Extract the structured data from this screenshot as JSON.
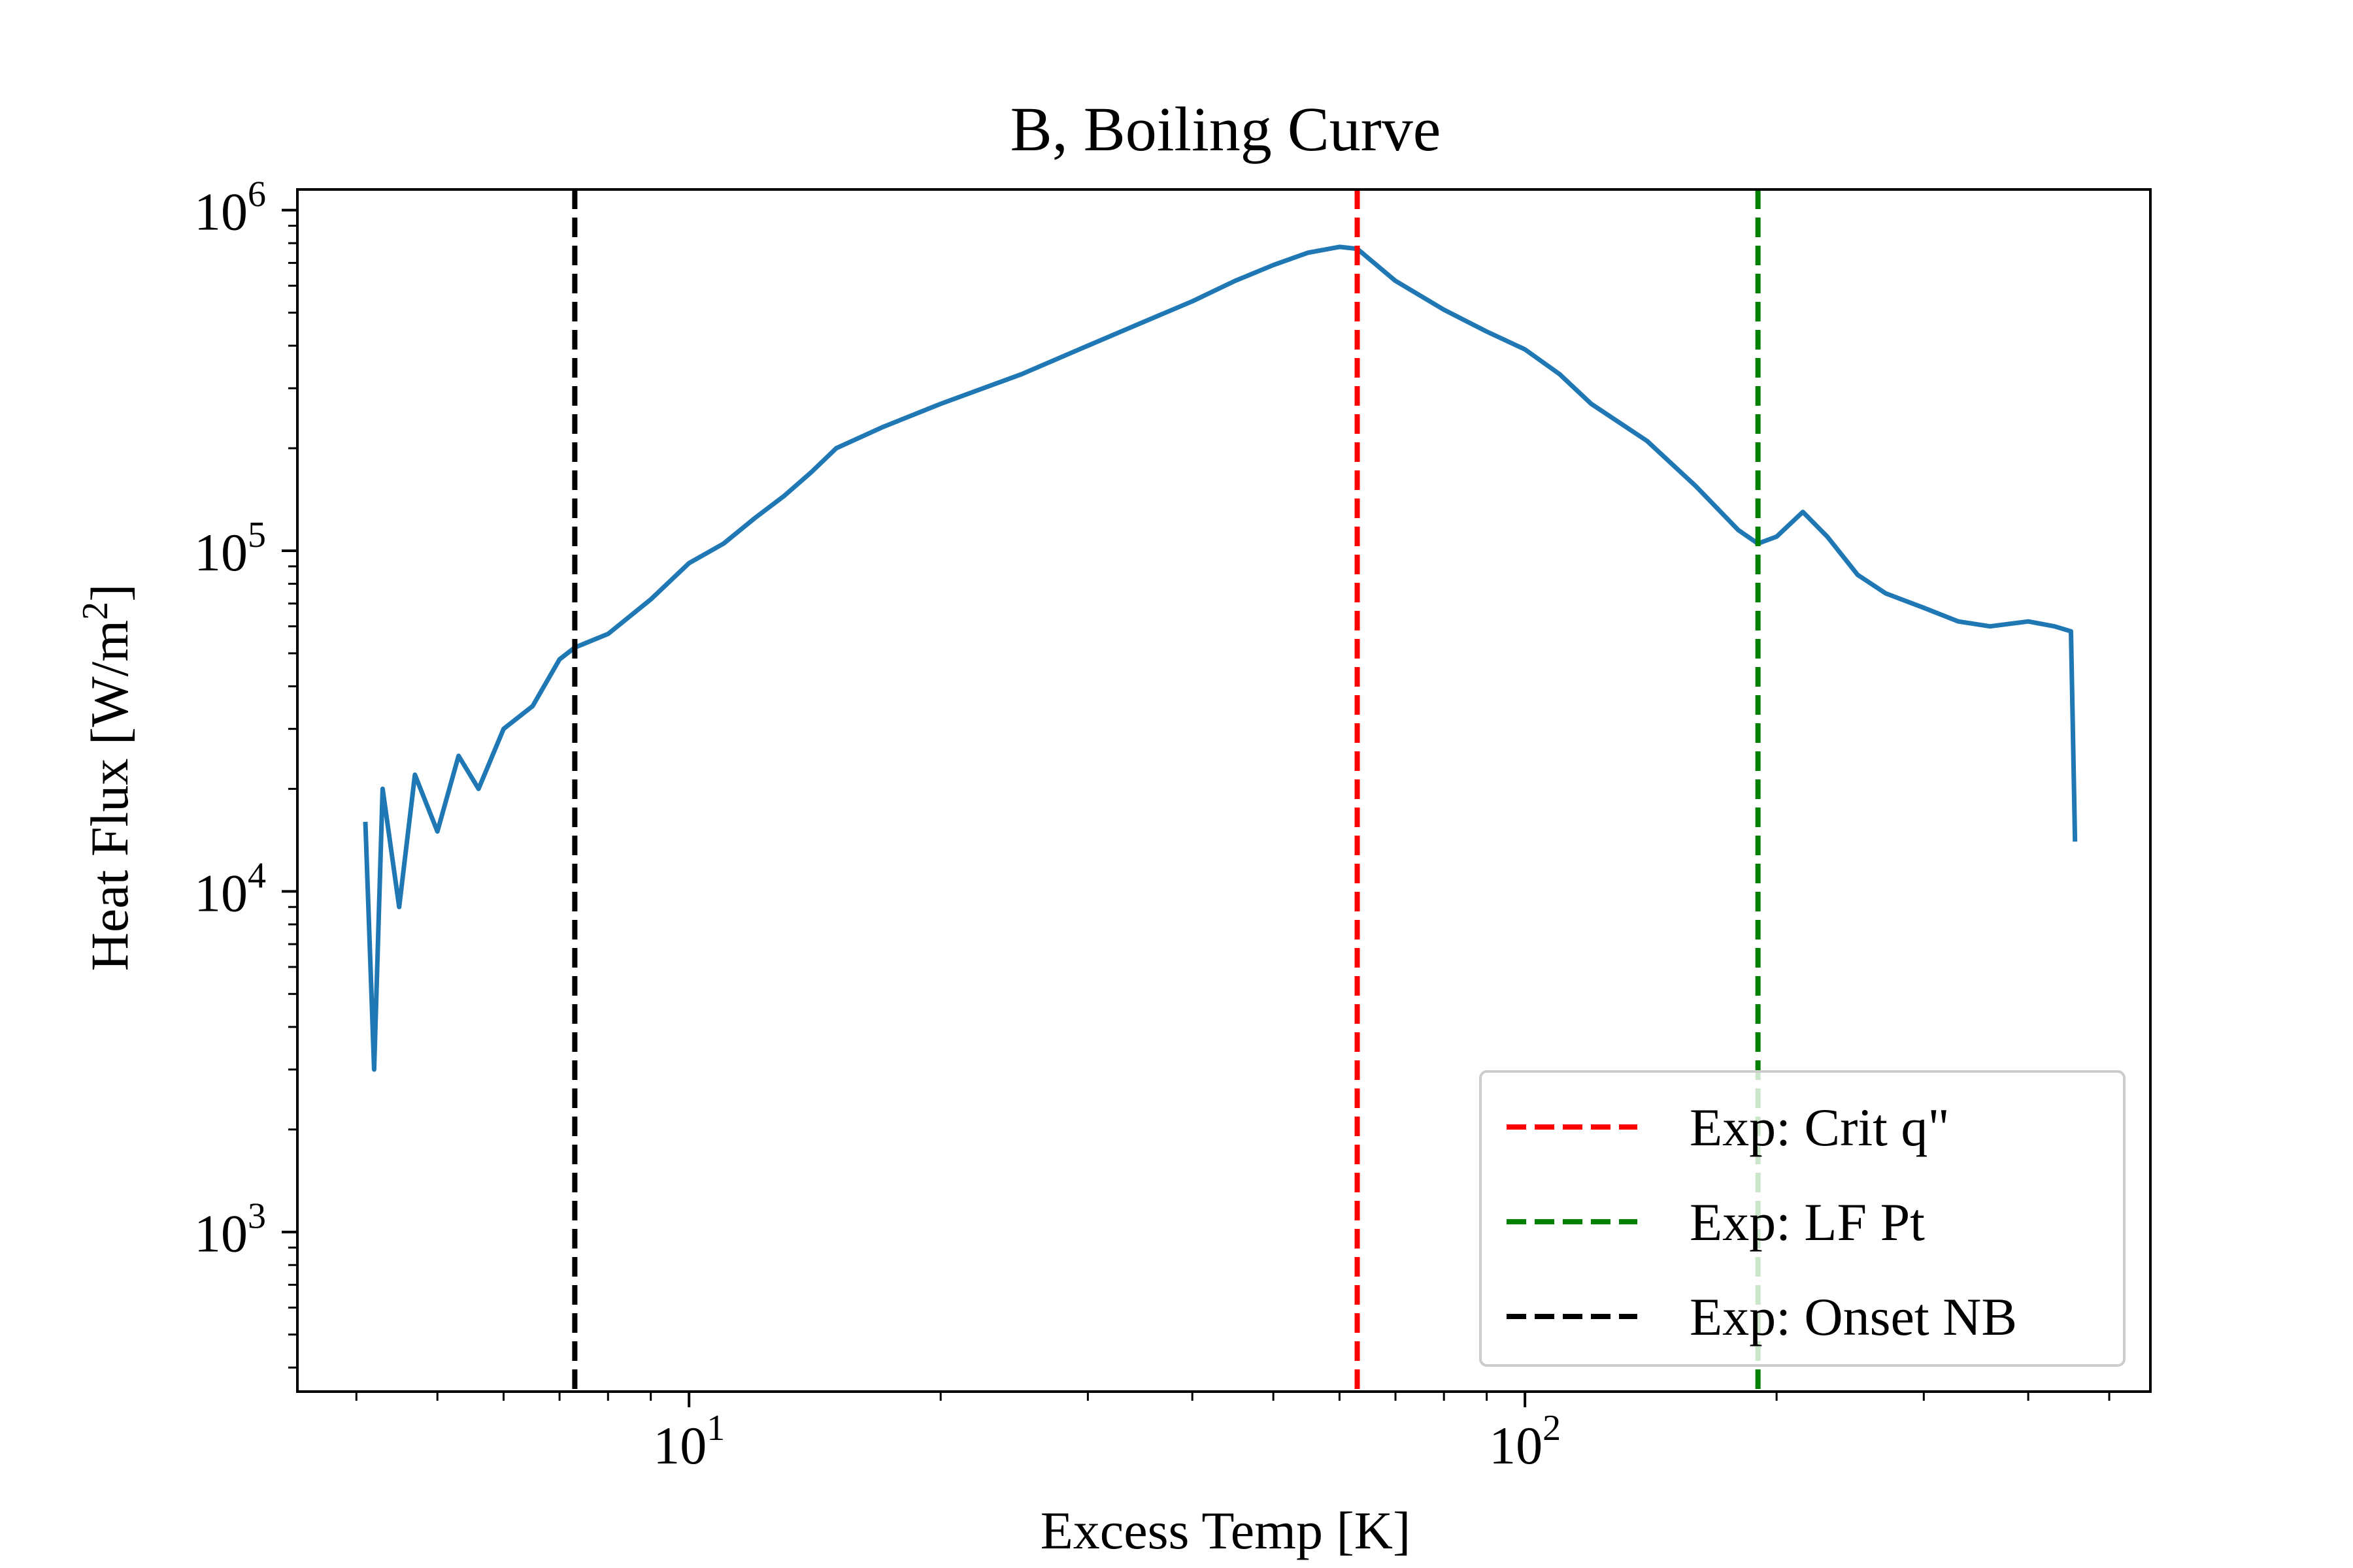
{
  "chart_data": {
    "type": "line",
    "title": "B, Boiling Curve",
    "xlabel": "Excess Temp [K]",
    "ylabel": "Heat Flux [W/m",
    "ylabel_sup": "2",
    "ylabel_close": "]",
    "xscale": "log",
    "yscale": "log",
    "xlim": [
      3.4,
      560
    ],
    "ylim": [
      340,
      1150000
    ],
    "x_ticks": [
      {
        "value": 10,
        "base": "10",
        "exp": "1"
      },
      {
        "value": 100,
        "base": "10",
        "exp": "2"
      }
    ],
    "y_ticks": [
      {
        "value": 1000,
        "base": "10",
        "exp": "3"
      },
      {
        "value": 10000,
        "base": "10",
        "exp": "4"
      },
      {
        "value": 100000,
        "base": "10",
        "exp": "5"
      },
      {
        "value": 1000000,
        "base": "10",
        "exp": "6"
      }
    ],
    "grid": false,
    "legend_position": "lower-right",
    "series": [
      {
        "color": "#1f77b4",
        "x": [
          4.1,
          4.2,
          4.3,
          4.5,
          4.7,
          5.0,
          5.3,
          5.6,
          6.0,
          6.5,
          7.0,
          7.3,
          8.0,
          9.0,
          10.0,
          11.0,
          12.0,
          13.0,
          14.0,
          15.0,
          17.0,
          20.0,
          25.0,
          30.0,
          35.0,
          40.0,
          45.0,
          50.0,
          55.0,
          60.0,
          63.0,
          70.0,
          80.0,
          90.0,
          100.0,
          110.0,
          120.0,
          140.0,
          160.0,
          180.0,
          190.0,
          200.0,
          215.0,
          230.0,
          250.0,
          270.0,
          300.0,
          330.0,
          360.0,
          400.0,
          430.0,
          450.0,
          455.0
        ],
        "y": [
          16000,
          3000,
          20000,
          9000,
          22000,
          15000,
          25000,
          20000,
          30000,
          35000,
          48000,
          52000,
          57000,
          72000,
          92000,
          105000,
          125000,
          145000,
          170000,
          200000,
          230000,
          270000,
          330000,
          400000,
          470000,
          540000,
          620000,
          690000,
          750000,
          780000,
          770000,
          620000,
          510000,
          440000,
          390000,
          330000,
          270000,
          210000,
          155000,
          115000,
          105000,
          110000,
          130000,
          110000,
          85000,
          75000,
          68000,
          62000,
          60000,
          62000,
          60000,
          58000,
          14000
        ]
      }
    ],
    "vlines": [
      {
        "label": "Exp: Crit q\"",
        "x": 63,
        "color": "#ff0000"
      },
      {
        "label": "Exp: LF Pt",
        "x": 190,
        "color": "#008000"
      },
      {
        "label": "Exp: Onset NB",
        "x": 7.3,
        "color": "#000000"
      }
    ]
  }
}
